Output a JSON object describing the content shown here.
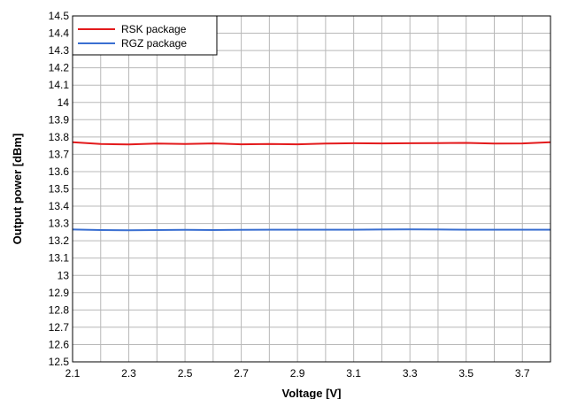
{
  "chart_data": {
    "type": "line",
    "title": "",
    "xlabel": "Voltage [V]",
    "ylabel": "Output power [dBm]",
    "xlim": [
      2.1,
      3.8
    ],
    "ylim": [
      12.5,
      14.5
    ],
    "x_ticks": [
      2.1,
      2.3,
      2.5,
      2.7,
      2.9,
      3.1,
      3.3,
      3.5,
      3.7
    ],
    "y_ticks": [
      12.5,
      12.6,
      12.7,
      12.8,
      12.9,
      13,
      13.1,
      13.2,
      13.3,
      13.4,
      13.5,
      13.6,
      13.7,
      13.8,
      13.9,
      14,
      14.1,
      14.2,
      14.3,
      14.4,
      14.5
    ],
    "grid": true,
    "legend_position": "top-left",
    "x": [
      2.1,
      2.2,
      2.3,
      2.4,
      2.5,
      2.6,
      2.7,
      2.8,
      2.9,
      3.0,
      3.1,
      3.2,
      3.3,
      3.4,
      3.5,
      3.6,
      3.7,
      3.8
    ],
    "series": [
      {
        "name": "RSK package",
        "color": "#e31a1c",
        "values": [
          13.77,
          13.76,
          13.757,
          13.762,
          13.76,
          13.763,
          13.758,
          13.76,
          13.758,
          13.762,
          13.764,
          13.763,
          13.764,
          13.765,
          13.766,
          13.762,
          13.763,
          13.77
        ]
      },
      {
        "name": "RGZ package",
        "color": "#3a6fd1",
        "values": [
          13.265,
          13.262,
          13.261,
          13.262,
          13.263,
          13.262,
          13.263,
          13.264,
          13.264,
          13.264,
          13.264,
          13.265,
          13.266,
          13.265,
          13.264,
          13.264,
          13.264,
          13.264
        ]
      }
    ]
  }
}
